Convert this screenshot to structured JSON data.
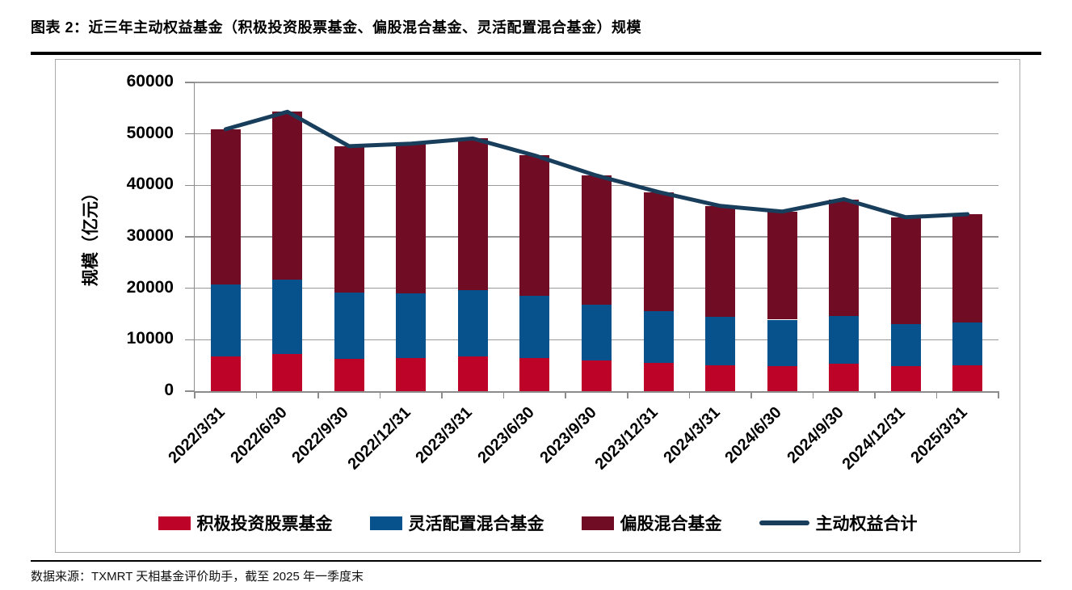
{
  "header": {
    "title": "图表 2：近三年主动权益基金（积极投资股票基金、偏股混合基金、灵活配置混合基金）规模"
  },
  "footer": {
    "source": "数据来源：TXMRT 天相基金评价助手，截至 2025 年一季度末"
  },
  "chart_data": {
    "type": "bar",
    "stacked": true,
    "title": "近三年主动权益基金规模",
    "xlabel": "",
    "ylabel": "规模（亿元）",
    "ylim": [
      0,
      60000
    ],
    "ytick_interval": 10000,
    "grid": true,
    "legend_position": "bottom",
    "categories": [
      "2022/3/31",
      "2022/6/30",
      "2022/9/30",
      "2022/12/31",
      "2023/3/31",
      "2023/6/30",
      "2023/9/30",
      "2023/12/31",
      "2024/3/31",
      "2024/6/30",
      "2024/9/30",
      "2024/12/31",
      "2025/3/31"
    ],
    "series": [
      {
        "name": "积极投资股票基金",
        "type": "bar",
        "color": "#be0328",
        "values": [
          6800,
          7300,
          6300,
          6500,
          6800,
          6500,
          6000,
          5500,
          5100,
          4800,
          5300,
          4800,
          5000
        ]
      },
      {
        "name": "灵活配置混合基金",
        "type": "bar",
        "color": "#07518d",
        "values": [
          14000,
          14400,
          12900,
          12500,
          12900,
          12000,
          10800,
          10000,
          9400,
          9100,
          9300,
          8300,
          8300
        ]
      },
      {
        "name": "偏股混合基金",
        "type": "bar",
        "color": "#700c23",
        "values": [
          30100,
          32600,
          28400,
          29100,
          29400,
          27300,
          25100,
          23200,
          21500,
          21000,
          22700,
          20700,
          21100
        ]
      },
      {
        "name": "主动权益合计",
        "type": "line",
        "color": "#193e5c",
        "values": [
          50900,
          54300,
          47600,
          48100,
          49100,
          45800,
          41900,
          38700,
          36000,
          34900,
          37300,
          33800,
          34400
        ]
      }
    ],
    "axis_color": "#8c8c8c",
    "grid_color": "#999999"
  }
}
